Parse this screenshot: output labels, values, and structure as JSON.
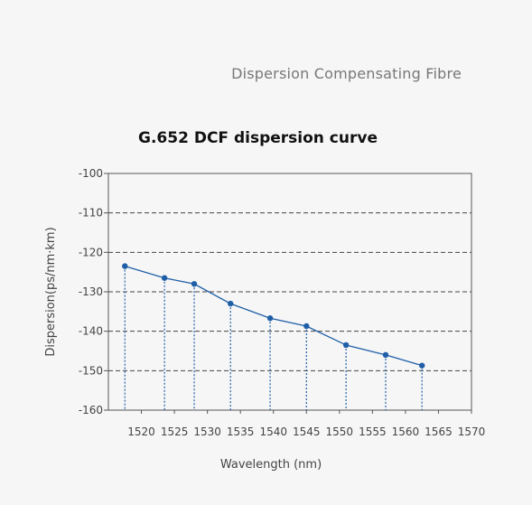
{
  "header": {
    "title": "Dispersion Compensating Fibre"
  },
  "chart_data": {
    "type": "line",
    "title": "G.652 DCF dispersion curve",
    "xlabel": "Wavelength (nm)",
    "ylabel": "Dispersion(ps/nm·km)",
    "xlim": [
      1515,
      1570
    ],
    "ylim": [
      -160,
      -100
    ],
    "x_ticks": [
      1520,
      1525,
      1530,
      1535,
      1540,
      1545,
      1550,
      1555,
      1560,
      1565,
      1570
    ],
    "y_ticks": [
      -100,
      -110,
      -120,
      -130,
      -140,
      -150,
      -160
    ],
    "grid": "horizontal dashed",
    "series": [
      {
        "color": "#1f5fa8",
        "x": [
          1517.5,
          1523.5,
          1528,
          1533.5,
          1539.5,
          1545,
          1551,
          1557,
          1562.5
        ],
        "y": [
          -123.5,
          -126.5,
          -128,
          -133,
          -136.7,
          -138.7,
          -143.5,
          -146,
          -148.7
        ]
      }
    ]
  }
}
